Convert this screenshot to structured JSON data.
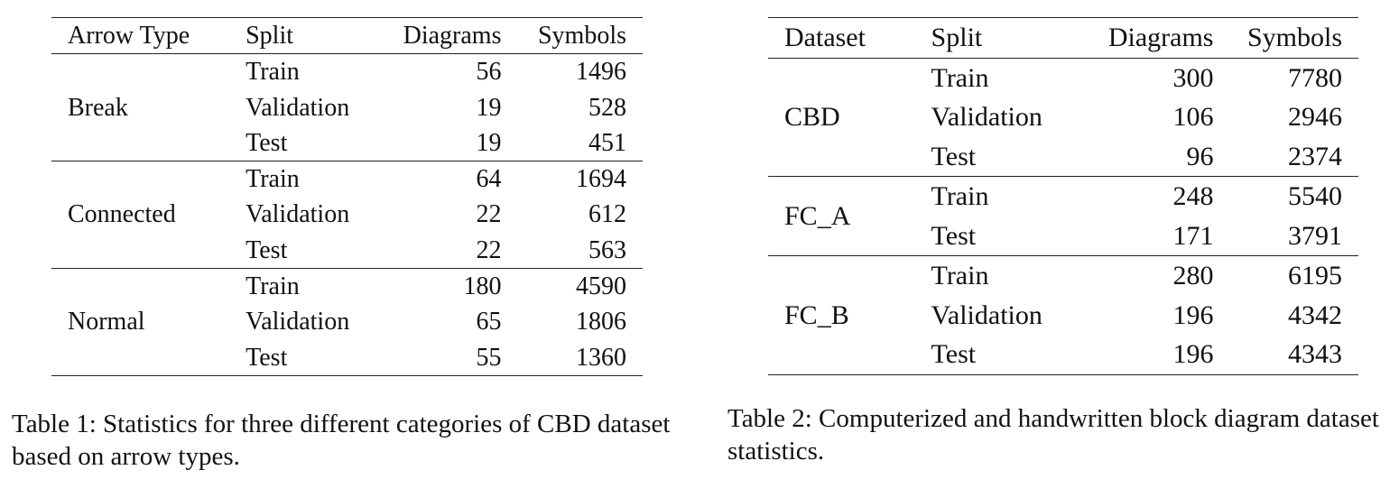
{
  "table1": {
    "headers": [
      "Arrow Type",
      "Split",
      "Diagrams",
      "Symbols"
    ],
    "groups": [
      {
        "name": "Break",
        "rows": [
          {
            "split": "Train",
            "diagrams": "56",
            "symbols": "1496"
          },
          {
            "split": "Validation",
            "diagrams": "19",
            "symbols": "528"
          },
          {
            "split": "Test",
            "diagrams": "19",
            "symbols": "451"
          }
        ]
      },
      {
        "name": "Connected",
        "rows": [
          {
            "split": "Train",
            "diagrams": "64",
            "symbols": "1694"
          },
          {
            "split": "Validation",
            "diagrams": "22",
            "symbols": "612"
          },
          {
            "split": "Test",
            "diagrams": "22",
            "symbols": "563"
          }
        ]
      },
      {
        "name": "Normal",
        "rows": [
          {
            "split": "Train",
            "diagrams": "180",
            "symbols": "4590"
          },
          {
            "split": "Validation",
            "diagrams": "65",
            "symbols": "1806"
          },
          {
            "split": "Test",
            "diagrams": "55",
            "symbols": "1360"
          }
        ]
      }
    ],
    "caption": "Table 1:  Statistics for three different categories of CBD dataset based on arrow types."
  },
  "table2": {
    "headers": [
      "Dataset",
      "Split",
      "Diagrams",
      "Symbols"
    ],
    "groups": [
      {
        "name": "CBD",
        "rows": [
          {
            "split": "Train",
            "diagrams": "300",
            "symbols": "7780"
          },
          {
            "split": "Validation",
            "diagrams": "106",
            "symbols": "2946"
          },
          {
            "split": "Test",
            "diagrams": "96",
            "symbols": "2374"
          }
        ]
      },
      {
        "name": "FC_A",
        "rows": [
          {
            "split": "Train",
            "diagrams": "248",
            "symbols": "5540"
          },
          {
            "split": "Test",
            "diagrams": "171",
            "symbols": "3791"
          }
        ]
      },
      {
        "name": "FC_B",
        "rows": [
          {
            "split": "Train",
            "diagrams": "280",
            "symbols": "6195"
          },
          {
            "split": "Validation",
            "diagrams": "196",
            "symbols": "4342"
          },
          {
            "split": "Test",
            "diagrams": "196",
            "symbols": "4343"
          }
        ]
      }
    ],
    "caption": "Table 2:  Computerized and handwritten block diagram dataset statistics."
  }
}
